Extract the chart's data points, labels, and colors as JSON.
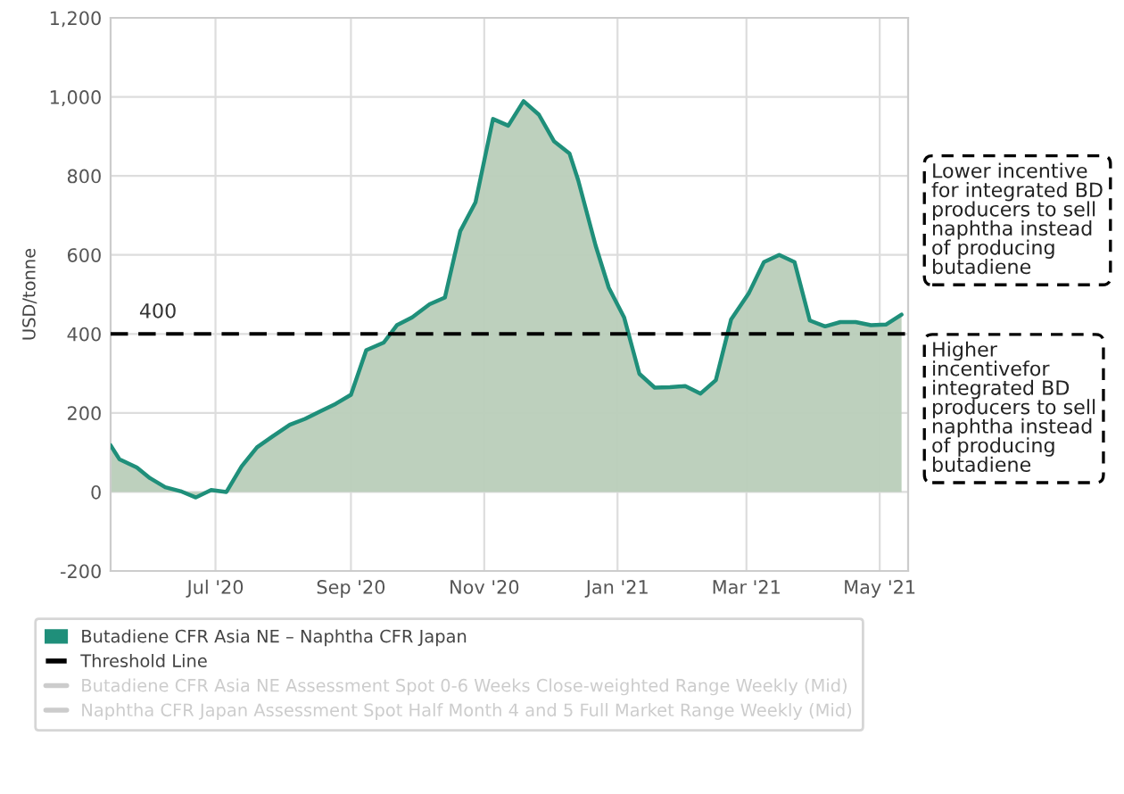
{
  "chart_data": {
    "type": "area",
    "ylabel": "USD/tonne",
    "x": [
      "2020-05-14",
      "2020-05-18",
      "2020-05-26",
      "2020-06-01",
      "2020-06-08",
      "2020-06-15",
      "2020-06-22",
      "2020-06-29",
      "2020-07-06",
      "2020-07-13",
      "2020-07-20",
      "2020-07-27",
      "2020-08-04",
      "2020-08-11",
      "2020-08-18",
      "2020-08-25",
      "2020-09-01",
      "2020-09-08",
      "2020-09-16",
      "2020-09-22",
      "2020-09-29",
      "2020-10-07",
      "2020-10-14",
      "2020-10-21",
      "2020-10-28",
      "2020-11-05",
      "2020-11-12",
      "2020-11-19",
      "2020-11-26",
      "2020-12-03",
      "2020-12-10",
      "2020-12-14",
      "2020-12-22",
      "2020-12-28",
      "2021-01-04",
      "2021-01-11",
      "2021-01-18",
      "2021-01-25",
      "2021-02-01",
      "2021-02-08",
      "2021-02-15",
      "2021-02-22",
      "2021-03-02",
      "2021-03-09",
      "2021-03-16",
      "2021-03-23",
      "2021-03-30",
      "2021-04-06",
      "2021-04-13",
      "2021-04-20",
      "2021-04-27",
      "2021-05-04",
      "2021-05-11"
    ],
    "series": [
      {
        "name": "Butadiene CFR Asia NE – Naphtha CFR Japan",
        "color": "#1f8f7a",
        "values": [
          118,
          83,
          62,
          35,
          12,
          2,
          -14,
          5,
          0,
          65,
          113,
          140,
          170,
          185,
          204,
          223,
          246,
          359,
          378,
          422,
          442,
          475,
          492,
          660,
          733,
          944,
          927,
          989,
          955,
          887,
          857,
          789,
          623,
          517,
          442,
          299,
          264,
          265,
          268,
          249,
          283,
          437,
          502,
          582,
          600,
          582,
          434,
          419,
          430,
          430,
          422,
          424,
          449
        ]
      },
      {
        "name": "Threshold Line",
        "type": "line",
        "line_style": "dashed",
        "color": "#000000",
        "x": [
          "2020-05-14",
          "2021-05-14"
        ],
        "values": [
          400,
          400
        ]
      },
      {
        "name": "Butadiene CFR Asia NE Assessment Spot 0-6 Weeks Close-weighted Range Weekly (Mid)",
        "type": "line",
        "color": "#cccccc",
        "values": [
          null,
          null,
          null,
          null,
          null,
          null,
          null,
          null,
          null,
          null,
          null,
          null,
          null,
          null,
          null,
          null,
          null,
          null,
          null,
          null,
          null,
          null,
          null,
          null,
          null,
          null,
          null,
          null,
          null,
          null,
          null,
          null,
          null,
          null,
          null,
          null,
          null,
          null,
          null,
          null,
          null,
          null,
          null,
          null,
          null,
          null,
          null,
          null,
          null,
          null,
          null,
          null,
          null
        ]
      },
      {
        "name": "Naphtha CFR Japan Assessment Spot Half Month 4 and 5 Full Market Range Weekly (Mid)",
        "type": "line",
        "color": "#cccccc",
        "values": [
          null,
          null,
          null,
          null,
          null,
          null,
          null,
          null,
          null,
          null,
          null,
          null,
          null,
          null,
          null,
          null,
          null,
          null,
          null,
          null,
          null,
          null,
          null,
          null,
          null,
          null,
          null,
          null,
          null,
          null,
          null,
          null,
          null,
          null,
          null,
          null,
          null,
          null,
          null,
          null,
          null,
          null,
          null,
          null,
          null,
          null,
          null,
          null,
          null,
          null,
          null,
          null,
          null
        ]
      }
    ],
    "xlim": [
      "2020-05-14",
      "2021-05-14"
    ],
    "xticks": [
      {
        "value": "2020-07-01",
        "label": "Jul '20"
      },
      {
        "value": "2020-09-01",
        "label": "Sep '20"
      },
      {
        "value": "2020-11-01",
        "label": "Nov '20"
      },
      {
        "value": "2021-01-01",
        "label": "Jan '21"
      },
      {
        "value": "2021-03-01",
        "label": "Mar '21"
      },
      {
        "value": "2021-05-01",
        "label": "May '21"
      }
    ],
    "ylim": [
      -200,
      1200
    ],
    "yticks": [
      {
        "value": -200,
        "label": "-200"
      },
      0,
      200,
      400,
      600,
      800,
      {
        "value": 1000,
        "label": "1,000"
      },
      {
        "value": 1200,
        "label": "1,200"
      }
    ],
    "grid": true,
    "legend": "bottom",
    "annotations": [
      {
        "text": "400",
        "x": "2020-05-27",
        "y": 400
      },
      "Lower incentive\nfor integrated BD\nproducers to sell\nnaphtha instead\nof producing\nbutadiene",
      "Higher\nincentivefor\nintegrated BD\nproducers to sell\nnaphtha instead\nof producing\nbutadiene"
    ]
  }
}
